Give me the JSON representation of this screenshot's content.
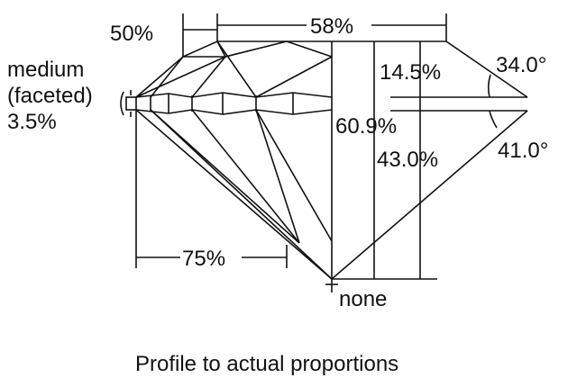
{
  "labels": {
    "table_width": "50%",
    "table_diameter": "58%",
    "girdle_type": "medium",
    "girdle_style": "(faceted)",
    "girdle_thickness": "3.5%",
    "crown_height": "14.5%",
    "crown_angle": "34.0°",
    "total_depth": "60.9%",
    "pavilion_depth": "43.0%",
    "pavilion_angle": "41.0°",
    "lower_half_length": "75%",
    "culet": "none"
  },
  "caption": "Profile to actual proportions"
}
